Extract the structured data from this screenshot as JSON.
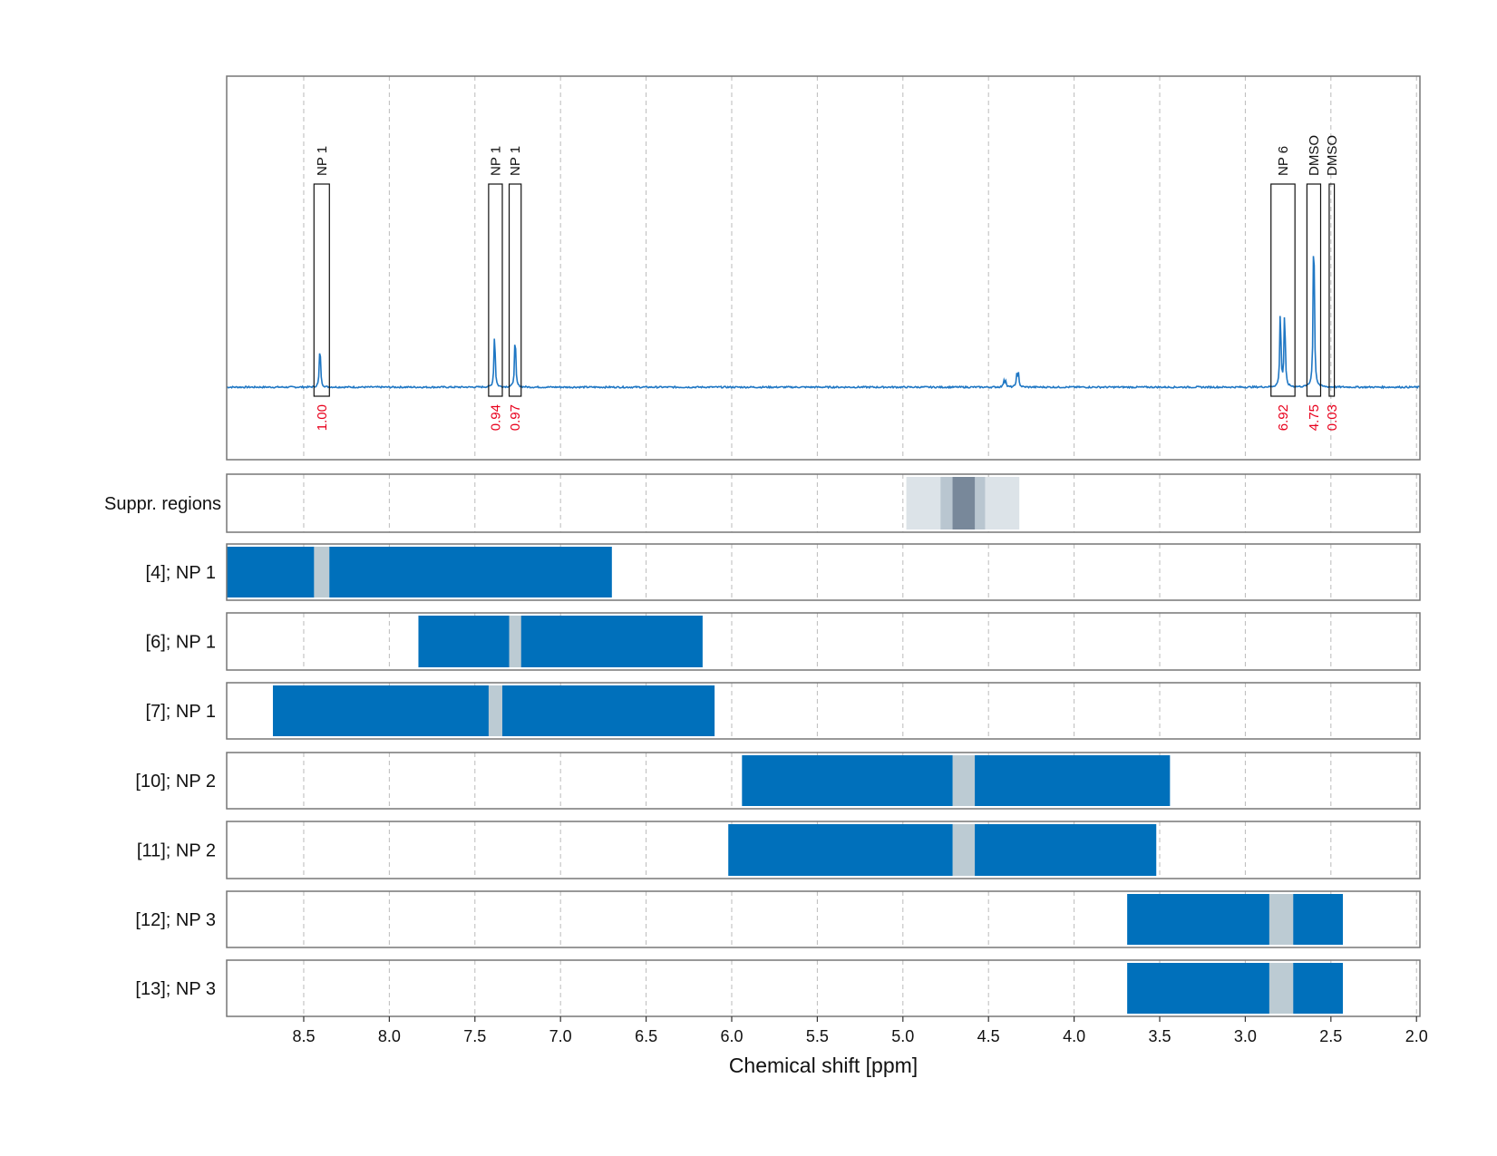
{
  "chart_data": {
    "type": "line",
    "title": "",
    "xlabel": "Chemical shift [ppm]",
    "ylabel": "",
    "x_reversed": true,
    "xlim": [
      8.95,
      1.98
    ],
    "x_ticks": [
      8.5,
      8.0,
      7.5,
      7.0,
      6.5,
      6.0,
      5.5,
      5.0,
      4.5,
      4.0,
      3.5,
      3.0,
      2.5,
      2.0
    ],
    "x_tick_labels": [
      "8.5",
      "8.0",
      "7.5",
      "7.0",
      "6.5",
      "6.0",
      "5.5",
      "5.0",
      "4.5",
      "4.0",
      "3.5",
      "3.0",
      "2.5",
      "2.0"
    ],
    "grid": true,
    "colors": {
      "spectrum": "#1f77c4",
      "interval": "#0070bb",
      "interval_gap": "#bccbd3",
      "suppr_light": "#dce3e8",
      "suppr_mid": "#b9c6d0",
      "suppr_dark": "#78889a",
      "integral_label": "#e8001c"
    },
    "spectrum": {
      "baseline": 0.0,
      "peaks": [
        {
          "ppm": 8.405,
          "height": 0.17
        },
        {
          "ppm": 7.385,
          "height": 0.22
        },
        {
          "ppm": 7.265,
          "height": 0.21
        },
        {
          "ppm": 4.41,
          "height": 0.025
        },
        {
          "ppm": 4.4,
          "height": 0.025
        },
        {
          "ppm": 4.335,
          "height": 0.045
        },
        {
          "ppm": 4.325,
          "height": 0.05
        },
        {
          "ppm": 2.795,
          "height": 0.3
        },
        {
          "ppm": 2.77,
          "height": 0.3
        },
        {
          "ppm": 2.6,
          "height": 0.67
        }
      ],
      "ylim": [
        -0.25,
        1.1
      ]
    },
    "annotations": [
      {
        "label": "NP 1",
        "from": 8.44,
        "to": 8.35,
        "integral": "1.00"
      },
      {
        "label": "NP 1",
        "from": 7.42,
        "to": 7.34,
        "integral": "0.94"
      },
      {
        "label": "NP 1",
        "from": 7.3,
        "to": 7.23,
        "integral": "0.97"
      },
      {
        "label": "NP 6",
        "from": 2.85,
        "to": 2.71,
        "integral": "6.92"
      },
      {
        "label": "DMSO",
        "from": 2.64,
        "to": 2.56,
        "integral": "4.75"
      },
      {
        "label": "DMSO",
        "from": 2.51,
        "to": 2.48,
        "integral": "0.03"
      }
    ],
    "suppression": {
      "label": "Suppr. regions",
      "bands": [
        {
          "from": 4.98,
          "to": 4.32,
          "level": "light"
        },
        {
          "from": 4.78,
          "to": 4.52,
          "level": "mid"
        },
        {
          "from": 4.71,
          "to": 4.58,
          "level": "dark"
        }
      ]
    },
    "intervals": [
      {
        "label": "[4]; NP 1",
        "from": 8.95,
        "to": 6.7,
        "gap_from": 8.44,
        "gap_to": 8.35
      },
      {
        "label": "[6]; NP 1",
        "from": 7.83,
        "to": 6.17,
        "gap_from": 7.3,
        "gap_to": 7.23
      },
      {
        "label": "[7]; NP 1",
        "from": 8.68,
        "to": 6.1,
        "gap_from": 7.42,
        "gap_to": 7.34
      },
      {
        "label": "[10]; NP 2",
        "from": 5.94,
        "to": 3.44,
        "gap_from": 4.71,
        "gap_to": 4.58
      },
      {
        "label": "[11]; NP 2",
        "from": 6.02,
        "to": 3.52,
        "gap_from": 4.71,
        "gap_to": 4.58
      },
      {
        "label": "[12]; NP 3",
        "from": 3.69,
        "to": 2.43,
        "gap_from": 2.86,
        "gap_to": 2.72
      },
      {
        "label": "[13]; NP 3",
        "from": 3.69,
        "to": 2.43,
        "gap_from": 2.86,
        "gap_to": 2.72
      }
    ]
  }
}
